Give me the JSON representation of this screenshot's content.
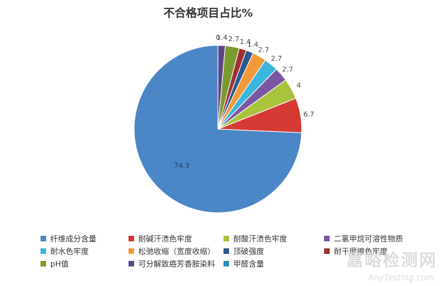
{
  "chart_data": {
    "type": "pie",
    "title": "不合格项目占比%",
    "categories": [
      "纤维成分含量",
      "耐碱汗渍色牢度",
      "耐酸汗渍色牢度",
      "二氯甲烷可溶性物质",
      "耐水色牢度",
      "松弛收缩（宽度收缩）",
      "顶破强度",
      "耐干摩擦色牢度",
      "pH值",
      "可分解致癌芳香胺染料",
      "甲醛含量"
    ],
    "values": [
      74.3,
      6.7,
      4,
      2.7,
      2.7,
      2.7,
      1.4,
      1.4,
      2.7,
      1.4,
      0
    ],
    "value_labels": [
      "74.3",
      "6.7",
      "4",
      "2.7",
      "2.7",
      "2.7",
      "1.4",
      "1.4",
      "2.7",
      "1.4",
      "0"
    ],
    "colors": [
      "#4b86c6",
      "#d63a35",
      "#a9c43c",
      "#7b57a3",
      "#3ab6dc",
      "#f29a38",
      "#2b5a8e",
      "#9e3232",
      "#7b9b30",
      "#5c4587",
      "#2a8fb0"
    ],
    "legend_position": "bottom"
  },
  "watermark": {
    "cn": "嘉峪检测网",
    "en": "AnyTesting.com"
  }
}
